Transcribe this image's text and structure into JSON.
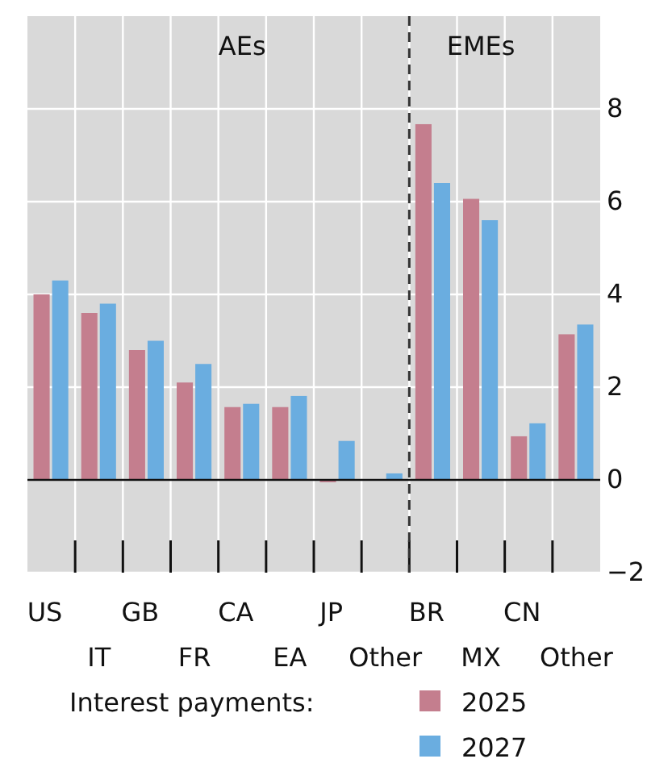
{
  "chart_data": {
    "type": "bar",
    "categories": [
      "US",
      "IT",
      "GB",
      "FR",
      "CA",
      "EA",
      "JP",
      "Other",
      "BR",
      "MX",
      "CN",
      "Other"
    ],
    "series": [
      {
        "name": "2025",
        "color": "#c47e8e",
        "values": [
          4.0,
          3.6,
          2.8,
          2.1,
          1.57,
          1.57,
          -0.05,
          0,
          7.67,
          6.06,
          0.94,
          3.14
        ]
      },
      {
        "name": "2027",
        "color": "#6aade0",
        "values": [
          4.3,
          3.8,
          3.0,
          2.5,
          1.64,
          1.81,
          0.84,
          0.14,
          6.4,
          5.6,
          1.22,
          3.35
        ]
      }
    ],
    "ylim": [
      -2,
      10
    ],
    "yticks": [
      -2,
      0,
      2,
      4,
      6,
      8
    ],
    "grid": true,
    "legend": "bottom",
    "legend_title": "Interest payments:",
    "ref_lines": [
      {
        "axis": "x",
        "value": "Other",
        "label": null,
        "line_style": "dashed",
        "color": "#333333"
      }
    ],
    "annotations": [
      "AEs",
      "EMEs"
    ]
  }
}
